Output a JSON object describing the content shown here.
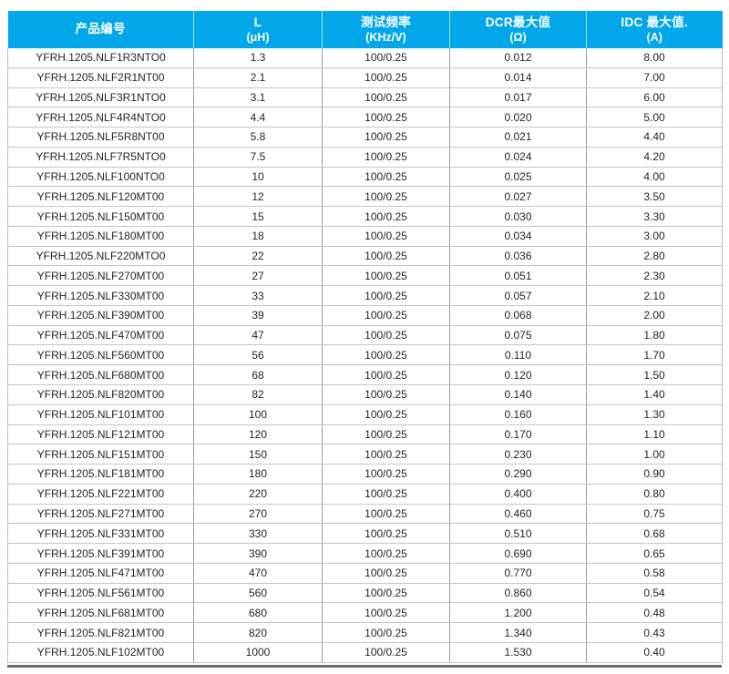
{
  "colors": {
    "header_bg": "#01a7e8",
    "header_text": "#ffffff",
    "row_text": "#262626",
    "h_gridline": "#c6c6c6",
    "v_gridline": "#9e9e9e",
    "bottom_rule": "#6d6d6d"
  },
  "table": {
    "columns": [
      {
        "line1": "产品编号",
        "line2": ""
      },
      {
        "line1": "L",
        "line2": "(μH)"
      },
      {
        "line1": "测试频率",
        "line2": "(KHz/V)"
      },
      {
        "line1": "DCR最大值",
        "line2": "(Ω)"
      },
      {
        "line1": "IDC 最大值.",
        "line2": "(A)"
      }
    ],
    "rows": [
      [
        "YFRH.1205.NLF1R3NTO0",
        "1.3",
        "100/0.25",
        "0.012",
        "8.00"
      ],
      [
        "YFRH.1205.NLF2R1NT00",
        "2.1",
        "100/0.25",
        "0.014",
        "7.00"
      ],
      [
        "YFRH.1205.NLF3R1NTO0",
        "3.1",
        "100/0.25",
        "0.017",
        "6.00"
      ],
      [
        "YFRH.1205.NLF4R4NTO0",
        "4.4",
        "100/0.25",
        "0.020",
        "5.00"
      ],
      [
        "YFRH.1205.NLF5R8NT00",
        "5.8",
        "100/0.25",
        "0.021",
        "4.40"
      ],
      [
        "YFRH.1205.NLF7R5NTO0",
        "7.5",
        "100/0.25",
        "0.024",
        "4.20"
      ],
      [
        "YFRH.1205.NLF100NTO0",
        "10",
        "100/0.25",
        "0.025",
        "4.00"
      ],
      [
        "YFRH.1205.NLF120MT00",
        "12",
        "100/0.25",
        "0.027",
        "3.50"
      ],
      [
        "YFRH.1205.NLF150MT00",
        "15",
        "100/0.25",
        "0.030",
        "3.30"
      ],
      [
        "YFRH.1205.NLF180MT00",
        "18",
        "100/0.25",
        "0.034",
        "3.00"
      ],
      [
        "YFRH.1205.NLF220MTO0",
        "22",
        "100/0.25",
        "0.036",
        "2.80"
      ],
      [
        "YFRH.1205.NLF270MT00",
        "27",
        "100/0.25",
        "0.051",
        "2.30"
      ],
      [
        "YFRH.1205.NLF330MT00",
        "33",
        "100/0.25",
        "0.057",
        "2.10"
      ],
      [
        "YFRH.1205.NLF390MT00",
        "39",
        "100/0.25",
        "0.068",
        "2.00"
      ],
      [
        "YFRH.1205.NLF470MT00",
        "47",
        "100/0.25",
        "0.075",
        "1.80"
      ],
      [
        "YFRH.1205.NLF560MT00",
        "56",
        "100/0.25",
        "0.110",
        "1.70"
      ],
      [
        "YFRH.1205.NLF680MT00",
        "68",
        "100/0.25",
        "0.120",
        "1.50"
      ],
      [
        "YFRH.1205.NLF820MT00",
        "82",
        "100/0.25",
        "0.140",
        "1.40"
      ],
      [
        "YFRH.1205.NLF101MT00",
        "100",
        "100/0.25",
        "0.160",
        "1.30"
      ],
      [
        "YFRH.1205.NLF121MT00",
        "120",
        "100/0.25",
        "0.170",
        "1.10"
      ],
      [
        "YFRH.1205.NLF151MT00",
        "150",
        "100/0.25",
        "0.230",
        "1.00"
      ],
      [
        "YFRH.1205.NLF181MT00",
        "180",
        "100/0.25",
        "0.290",
        "0.90"
      ],
      [
        "YFRH.1205.NLF221MT00",
        "220",
        "100/0.25",
        "0.400",
        "0.80"
      ],
      [
        "YFRH.1205.NLF271MT00",
        "270",
        "100/0.25",
        "0.460",
        "0.75"
      ],
      [
        "YFRH.1205.NLF331MT00",
        "330",
        "100/0.25",
        "0.510",
        "0.68"
      ],
      [
        "YFRH.1205.NLF391MT00",
        "390",
        "100/0.25",
        "0.690",
        "0.65"
      ],
      [
        "YFRH.1205.NLF471MT00",
        "470",
        "100/0.25",
        "0.770",
        "0.58"
      ],
      [
        "YFRH.1205.NLF561MT00",
        "560",
        "100/0.25",
        "0.860",
        "0.54"
      ],
      [
        "YFRH.1205.NLF681MT00",
        "680",
        "100/0.25",
        "1.200",
        "0.48"
      ],
      [
        "YFRH.1205.NLF821MT00",
        "820",
        "100/0.25",
        "1.340",
        "0.43"
      ],
      [
        "YFRH.1205.NLF102MT00",
        "1000",
        "100/0.25",
        "1.530",
        "0.40"
      ]
    ]
  }
}
